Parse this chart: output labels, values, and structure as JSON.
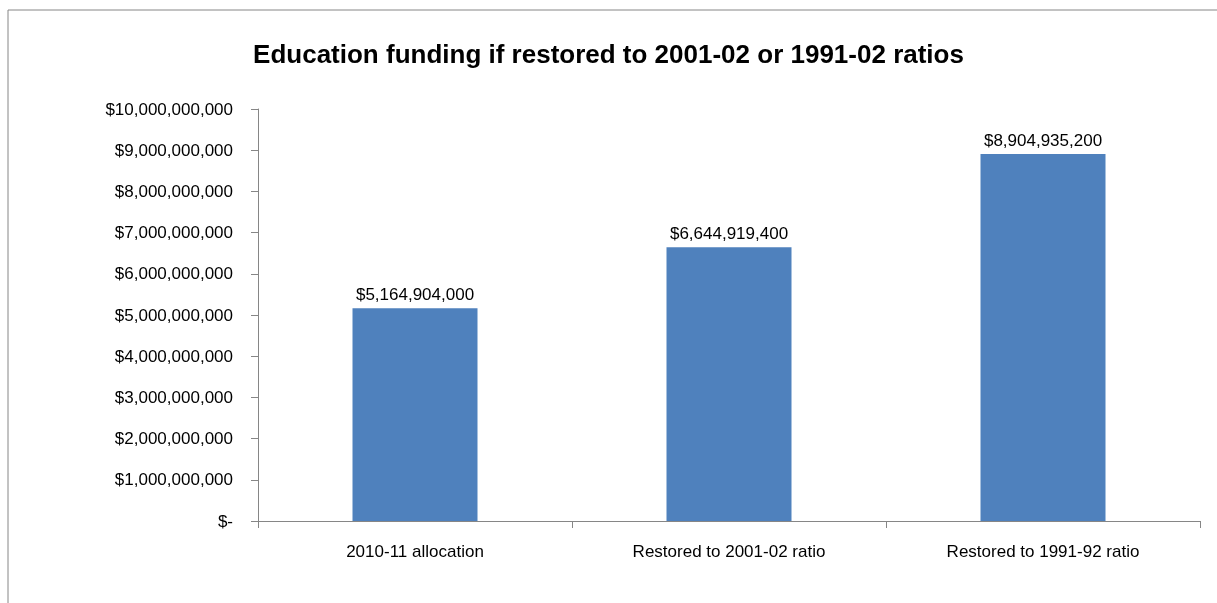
{
  "chart_data": {
    "type": "bar",
    "title": "Education funding if restored to 2001-02 or 1991-02 ratios",
    "categories": [
      "2010-11 allocation",
      "Restored to 2001-02 ratio",
      "Restored to 1991-92 ratio"
    ],
    "values": [
      5164904000,
      6644919400,
      8904935200
    ],
    "value_labels": [
      "$5,164,904,000",
      "$6,644,919,400",
      "$8,904,935,200"
    ],
    "color": "#4f81bd",
    "ylim": [
      0,
      10000000000
    ],
    "yticks": [
      {
        "value": 0,
        "label": "$-"
      },
      {
        "value": 1000000000,
        "label": "$1,000,000,000"
      },
      {
        "value": 2000000000,
        "label": "$2,000,000,000"
      },
      {
        "value": 3000000000,
        "label": "$3,000,000,000"
      },
      {
        "value": 4000000000,
        "label": "$4,000,000,000"
      },
      {
        "value": 5000000000,
        "label": "$5,000,000,000"
      },
      {
        "value": 6000000000,
        "label": "$6,000,000,000"
      },
      {
        "value": 7000000000,
        "label": "$7,000,000,000"
      },
      {
        "value": 8000000000,
        "label": "$8,000,000,000"
      },
      {
        "value": 9000000000,
        "label": "$9,000,000,000"
      },
      {
        "value": 10000000000,
        "label": "$10,000,000,000"
      }
    ],
    "grid": false
  }
}
